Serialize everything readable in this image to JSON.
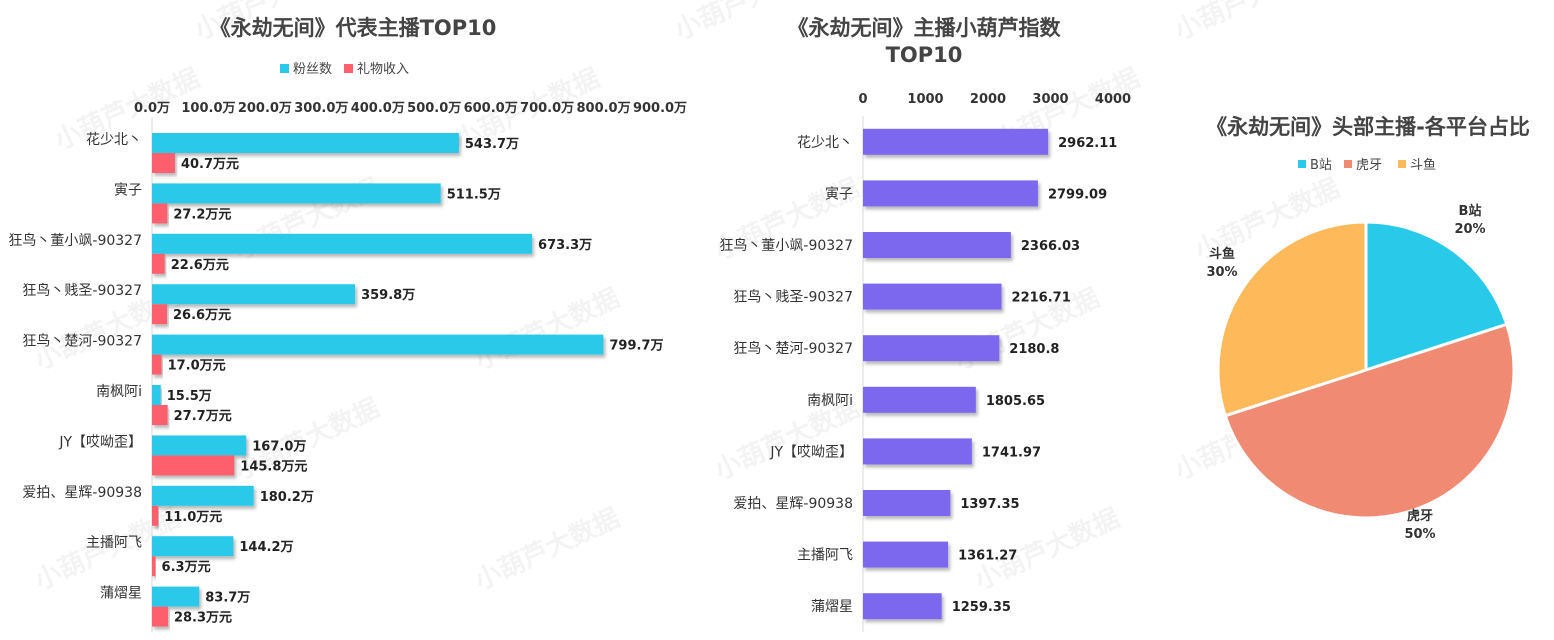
{
  "chart_data": [
    {
      "type": "bar",
      "orientation": "horizontal",
      "title": "《永劫无间》代表主播TOP10",
      "categories": [
        "花少北丶",
        "寅子",
        "狂鸟丶董小飒-90327",
        "狂鸟丶贱圣-90327",
        "狂鸟丶楚河-90327",
        "南枫阿i",
        "JY【哎呦歪】",
        "爱拍、星辉-90938",
        "主播阿飞",
        "蒲熠星"
      ],
      "series": [
        {
          "name": "粉丝数",
          "color": "#29C9EA",
          "values": [
            543.7,
            511.5,
            673.3,
            359.8,
            799.7,
            15.5,
            167.0,
            180.2,
            144.2,
            83.7
          ],
          "labels": [
            "543.7万",
            "511.5万",
            "673.3万",
            "359.8万",
            "799.7万",
            "15.5万",
            "167.0万",
            "180.2万",
            "144.2万",
            "83.7万"
          ]
        },
        {
          "name": "礼物收入",
          "color": "#FD5F6D",
          "values": [
            40.7,
            27.2,
            22.6,
            26.6,
            17.0,
            27.7,
            145.8,
            11.0,
            6.3,
            28.3
          ],
          "labels": [
            "40.7万元",
            "27.2万元",
            "22.6万元",
            "26.6万元",
            "17.0万元",
            "27.7万元",
            "145.8万元",
            "11.0万元",
            "6.3万元",
            "28.3万元"
          ]
        }
      ],
      "xlim": [
        0,
        900
      ],
      "ticks": [
        "0.0万",
        "100.0万",
        "200.0万",
        "300.0万",
        "400.0万",
        "500.0万",
        "600.0万",
        "700.0万",
        "800.0万",
        "900.0万"
      ],
      "legend_position": "top",
      "grid": false
    },
    {
      "type": "bar",
      "orientation": "horizontal",
      "title": "《永劫无间》主播小葫芦指数TOP10",
      "categories": [
        "花少北丶",
        "寅子",
        "狂鸟丶董小飒-90327",
        "狂鸟丶贱圣-90327",
        "狂鸟丶楚河-90327",
        "南枫阿i",
        "JY【哎呦歪】",
        "爱拍、星辉-90938",
        "主播阿飞",
        "蒲熠星"
      ],
      "series": [
        {
          "color": "#7B68EE",
          "values": [
            2962.11,
            2799.09,
            2366.03,
            2216.71,
            2180.8,
            1805.65,
            1741.97,
            1397.35,
            1361.27,
            1259.35
          ],
          "labels": [
            "2962.11",
            "2799.09",
            "2366.03",
            "2216.71",
            "2180.8",
            "1805.65",
            "1741.97",
            "1397.35",
            "1361.27",
            "1259.35"
          ]
        }
      ],
      "xlim": [
        0,
        4000
      ],
      "ticks": [
        "0",
        "1000",
        "2000",
        "3000",
        "4000"
      ],
      "grid": false
    },
    {
      "type": "pie",
      "title": "《永劫无间》头部主播-各平台占比",
      "slices": [
        {
          "name": "B站",
          "value": 20,
          "label": "20%",
          "color": "#29C9EA"
        },
        {
          "name": "虎牙",
          "value": 50,
          "label": "50%",
          "color": "#F08A72"
        },
        {
          "name": "斗鱼",
          "value": 30,
          "label": "30%",
          "color": "#FDB95A"
        }
      ],
      "legend_position": "top"
    }
  ],
  "watermark": "小葫芦大数据"
}
